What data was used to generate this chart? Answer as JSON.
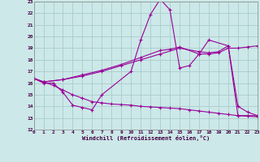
{
  "xlabel": "Windchill (Refroidissement éolien,°C)",
  "bg_color": "#cce8e8",
  "grid_color": "#aacccc",
  "line_color": "#990099",
  "xlim": [
    0,
    23
  ],
  "ylim": [
    12,
    23
  ],
  "xticks": [
    0,
    1,
    2,
    3,
    4,
    5,
    6,
    7,
    8,
    9,
    10,
    11,
    12,
    13,
    14,
    15,
    16,
    17,
    18,
    19,
    20,
    21,
    22,
    23
  ],
  "yticks": [
    12,
    13,
    14,
    15,
    16,
    17,
    18,
    19,
    20,
    21,
    22,
    23
  ],
  "lines": [
    {
      "x": [
        0,
        1,
        2,
        3,
        4,
        5,
        6,
        7,
        10,
        11,
        12,
        13,
        14,
        15,
        16,
        17,
        18,
        20,
        21,
        22,
        23
      ],
      "y": [
        16.4,
        16.0,
        16.0,
        15.2,
        14.1,
        13.9,
        13.7,
        15.0,
        17.0,
        19.7,
        21.9,
        23.2,
        22.3,
        17.3,
        17.5,
        18.5,
        19.7,
        19.2,
        13.2,
        13.2,
        13.2
      ]
    },
    {
      "x": [
        0,
        1,
        3,
        5,
        7,
        9,
        11,
        13,
        14,
        15,
        17,
        18,
        19,
        20,
        21,
        22,
        23
      ],
      "y": [
        16.4,
        16.1,
        16.3,
        16.7,
        17.1,
        17.6,
        18.2,
        18.8,
        18.9,
        19.1,
        18.5,
        18.5,
        18.6,
        19.0,
        19.0,
        19.1,
        19.2
      ]
    },
    {
      "x": [
        0,
        1,
        3,
        5,
        7,
        9,
        11,
        13,
        15,
        17,
        18,
        19,
        20,
        21,
        22,
        23
      ],
      "y": [
        16.4,
        16.1,
        16.3,
        16.6,
        17.0,
        17.5,
        18.0,
        18.5,
        19.0,
        18.7,
        18.6,
        18.7,
        19.2,
        14.0,
        13.5,
        13.2
      ]
    },
    {
      "x": [
        0,
        1,
        2,
        3,
        4,
        5,
        6,
        7,
        8,
        9,
        10,
        11,
        12,
        13,
        14,
        15,
        16,
        17,
        18,
        19,
        20,
        21,
        22,
        23
      ],
      "y": [
        16.4,
        16.1,
        15.8,
        15.4,
        15.0,
        14.7,
        14.4,
        14.3,
        14.2,
        14.15,
        14.1,
        14.0,
        13.95,
        13.9,
        13.85,
        13.8,
        13.7,
        13.6,
        13.5,
        13.4,
        13.3,
        13.2,
        13.15,
        13.1
      ]
    }
  ]
}
